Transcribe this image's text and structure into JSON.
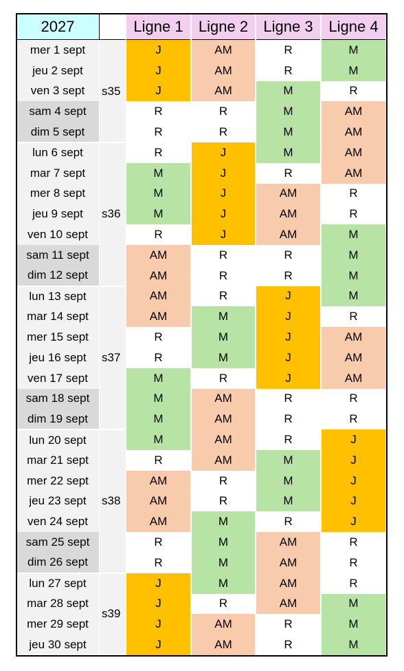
{
  "header": {
    "year": "2027",
    "year_fill": "#CCFFFF",
    "line_fill": "#F2CEEF",
    "lines": [
      "Ligne 1",
      "Ligne 2",
      "Ligne 3",
      "Ligne 4"
    ]
  },
  "colors": {
    "J": "#FFC000",
    "AM": "#F8CBAD",
    "M": "#B7E4A4",
    "R": "#FFFFFF"
  },
  "week_fill": "#F2F2F2",
  "weeks": [
    {
      "label": "s35",
      "days": [
        {
          "date": "mer 1 sept",
          "fill": "#F2F2F2",
          "cells": [
            "J",
            "AM",
            "R",
            "M"
          ]
        },
        {
          "date": "jeu 2 sept",
          "fill": "#F2F2F2",
          "cells": [
            "J",
            "AM",
            "R",
            "M"
          ]
        },
        {
          "date": "ven 3 sept",
          "fill": "#F2F2F2",
          "cells": [
            "J",
            "AM",
            "M",
            "R"
          ]
        },
        {
          "date": "sam 4 sept",
          "fill": "#D9D9D9",
          "cells": [
            "R",
            "R",
            "M",
            "AM"
          ]
        },
        {
          "date": "dim 5 sept",
          "fill": "#D9D9D9",
          "cells": [
            "R",
            "R",
            "M",
            "AM"
          ]
        }
      ]
    },
    {
      "label": "s36",
      "days": [
        {
          "date": "lun 6 sept",
          "fill": "#F2F2F2",
          "cells": [
            "R",
            "J",
            "M",
            "AM"
          ]
        },
        {
          "date": "mar 7 sept",
          "fill": "#F2F2F2",
          "cells": [
            "M",
            "J",
            "R",
            "AM"
          ]
        },
        {
          "date": "mer 8 sept",
          "fill": "#F2F2F2",
          "cells": [
            "M",
            "J",
            "AM",
            "R"
          ]
        },
        {
          "date": "jeu 9 sept",
          "fill": "#F2F2F2",
          "cells": [
            "M",
            "J",
            "AM",
            "R"
          ]
        },
        {
          "date": "ven 10 sept",
          "fill": "#F2F2F2",
          "cells": [
            "R",
            "J",
            "AM",
            "M"
          ]
        },
        {
          "date": "sam 11 sept",
          "fill": "#D9D9D9",
          "cells": [
            "AM",
            "R",
            "R",
            "M"
          ]
        },
        {
          "date": "dim 12 sept",
          "fill": "#D9D9D9",
          "cells": [
            "AM",
            "R",
            "R",
            "M"
          ]
        }
      ]
    },
    {
      "label": "s37",
      "days": [
        {
          "date": "lun 13 sept",
          "fill": "#F2F2F2",
          "cells": [
            "AM",
            "R",
            "J",
            "M"
          ]
        },
        {
          "date": "mar 14 sept",
          "fill": "#F2F2F2",
          "cells": [
            "AM",
            "M",
            "J",
            "R"
          ]
        },
        {
          "date": "mer 15 sept",
          "fill": "#F2F2F2",
          "cells": [
            "R",
            "M",
            "J",
            "AM"
          ]
        },
        {
          "date": "jeu 16 sept",
          "fill": "#F2F2F2",
          "cells": [
            "R",
            "M",
            "J",
            "AM"
          ]
        },
        {
          "date": "ven 17 sept",
          "fill": "#F2F2F2",
          "cells": [
            "M",
            "R",
            "J",
            "AM"
          ]
        },
        {
          "date": "sam 18 sept",
          "fill": "#D9D9D9",
          "cells": [
            "M",
            "AM",
            "R",
            "R"
          ]
        },
        {
          "date": "dim 19 sept",
          "fill": "#D9D9D9",
          "cells": [
            "M",
            "AM",
            "R",
            "R"
          ]
        }
      ]
    },
    {
      "label": "s38",
      "days": [
        {
          "date": "lun 20 sept",
          "fill": "#F2F2F2",
          "cells": [
            "M",
            "AM",
            "R",
            "J"
          ]
        },
        {
          "date": "mar 21 sept",
          "fill": "#F2F2F2",
          "cells": [
            "R",
            "AM",
            "M",
            "J"
          ]
        },
        {
          "date": "mer 22 sept",
          "fill": "#F2F2F2",
          "cells": [
            "AM",
            "R",
            "M",
            "J"
          ]
        },
        {
          "date": "jeu 23 sept",
          "fill": "#F2F2F2",
          "cells": [
            "AM",
            "R",
            "M",
            "J"
          ]
        },
        {
          "date": "ven 24 sept",
          "fill": "#F2F2F2",
          "cells": [
            "AM",
            "M",
            "R",
            "J"
          ]
        },
        {
          "date": "sam 25 sept",
          "fill": "#D9D9D9",
          "cells": [
            "R",
            "M",
            "AM",
            "R"
          ]
        },
        {
          "date": "dim 26 sept",
          "fill": "#D9D9D9",
          "cells": [
            "R",
            "M",
            "AM",
            "R"
          ]
        }
      ]
    },
    {
      "label": "s39",
      "days": [
        {
          "date": "lun 27 sept",
          "fill": "#F2F2F2",
          "cells": [
            "J",
            "M",
            "AM",
            "R"
          ]
        },
        {
          "date": "mar 28 sept",
          "fill": "#F2F2F2",
          "cells": [
            "J",
            "R",
            "AM",
            "M"
          ]
        },
        {
          "date": "mer 29 sept",
          "fill": "#F2F2F2",
          "cells": [
            "J",
            "AM",
            "R",
            "M"
          ]
        },
        {
          "date": "jeu 30 sept",
          "fill": "#F2F2F2",
          "cells": [
            "J",
            "AM",
            "R",
            "M"
          ]
        }
      ]
    }
  ]
}
